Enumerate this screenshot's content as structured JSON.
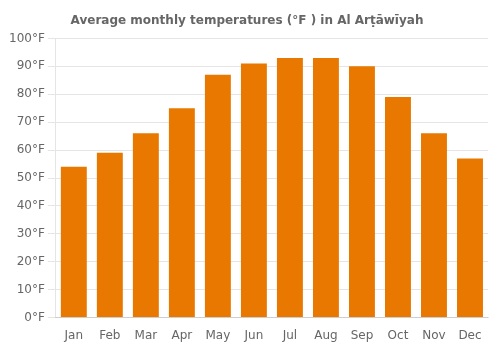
{
  "chart_data": {
    "type": "bar",
    "title": "Average monthly temperatures (°F ) in Al Arṭāwīyah",
    "categories": [
      "Jan",
      "Feb",
      "Mar",
      "Apr",
      "May",
      "Jun",
      "Jul",
      "Aug",
      "Sep",
      "Oct",
      "Nov",
      "Dec"
    ],
    "values": [
      54,
      59,
      66,
      75,
      87,
      91,
      93,
      93,
      90,
      79,
      66,
      57
    ],
    "color": "#E87800",
    "ylim": [
      0,
      100
    ],
    "yticks": [
      {
        "value": 0,
        "label": "0°F"
      },
      {
        "value": 10,
        "label": "10°F"
      },
      {
        "value": 20,
        "label": "20°F"
      },
      {
        "value": 30,
        "label": "30°F"
      },
      {
        "value": 40,
        "label": "40°F"
      },
      {
        "value": 50,
        "label": "50°F"
      },
      {
        "value": 60,
        "label": "60°F"
      },
      {
        "value": 70,
        "label": "70°F"
      },
      {
        "value": 80,
        "label": "80°F"
      },
      {
        "value": 90,
        "label": "90°F"
      },
      {
        "value": 100,
        "label": "100°F"
      }
    ],
    "grid": true
  }
}
